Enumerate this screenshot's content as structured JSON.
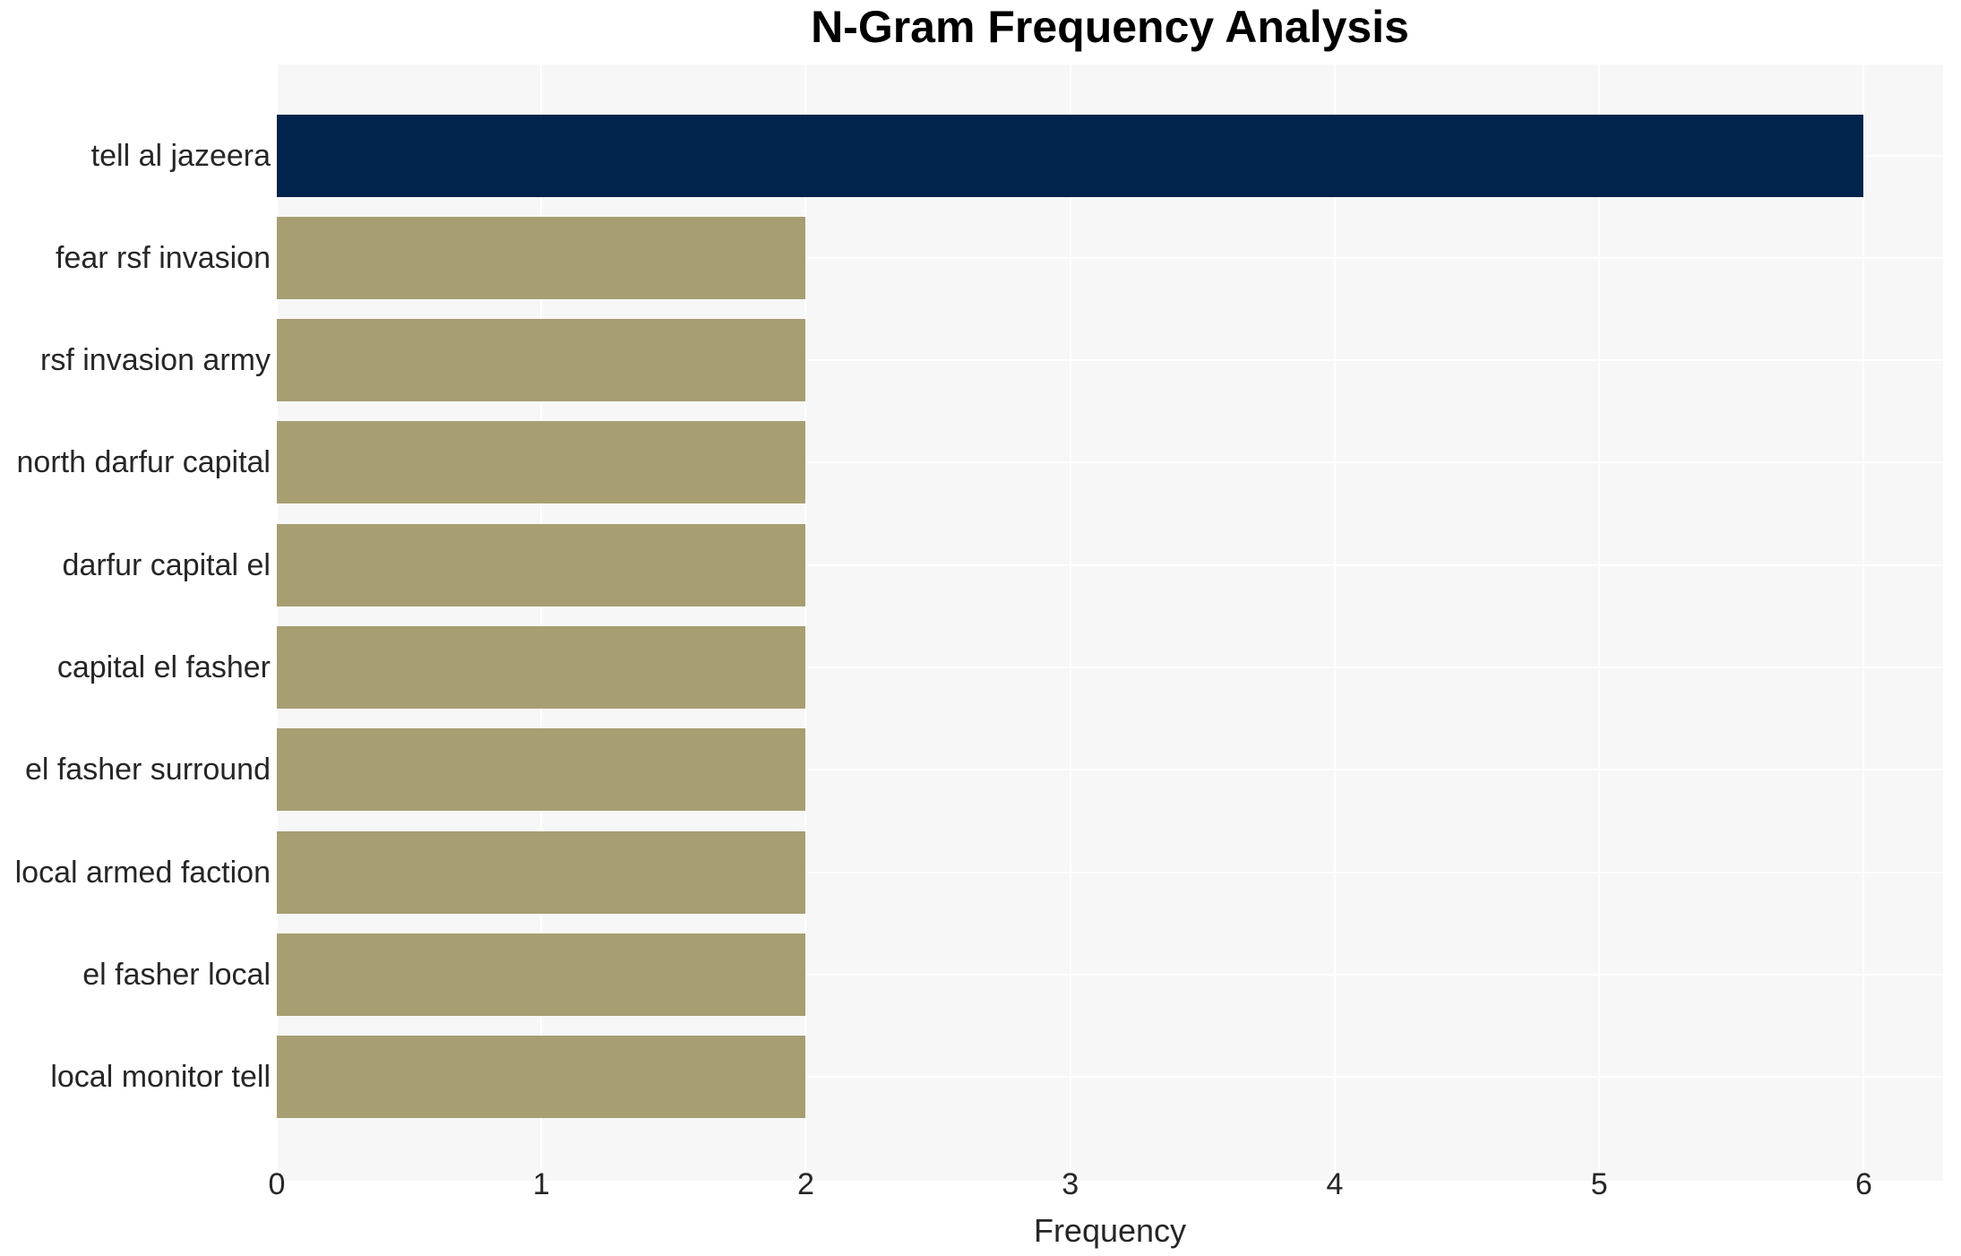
{
  "chart_data": {
    "type": "bar",
    "orientation": "horizontal",
    "title": "N-Gram Frequency Analysis",
    "xlabel": "Frequency",
    "ylabel": "",
    "categories": [
      "tell al jazeera",
      "fear rsf invasion",
      "rsf invasion army",
      "north darfur capital",
      "darfur capital el",
      "capital el fasher",
      "el fasher surround",
      "local armed faction",
      "el fasher local",
      "local monitor tell"
    ],
    "values": [
      6,
      2,
      2,
      2,
      2,
      2,
      2,
      2,
      2,
      2
    ],
    "bar_colors": [
      "#02234C",
      "#A79E72",
      "#A79E72",
      "#A79E72",
      "#A79E72",
      "#A79E72",
      "#A79E72",
      "#A79E72",
      "#A79E72",
      "#A79E72"
    ],
    "x_ticks": [
      0,
      1,
      2,
      3,
      4,
      5,
      6
    ],
    "xlim": [
      0,
      6.3
    ],
    "grid": true,
    "legend": "none",
    "styles": {
      "highlight_bar_color": "#02234C",
      "default_bar_color": "#A79E72",
      "plot_background": "#F7F7F7",
      "grid_color": "#FFFFFF",
      "tick_text_color": "#262626",
      "label_text_color": "#262626",
      "title_color": "#000000",
      "page_background": "#FFFFFF"
    }
  }
}
